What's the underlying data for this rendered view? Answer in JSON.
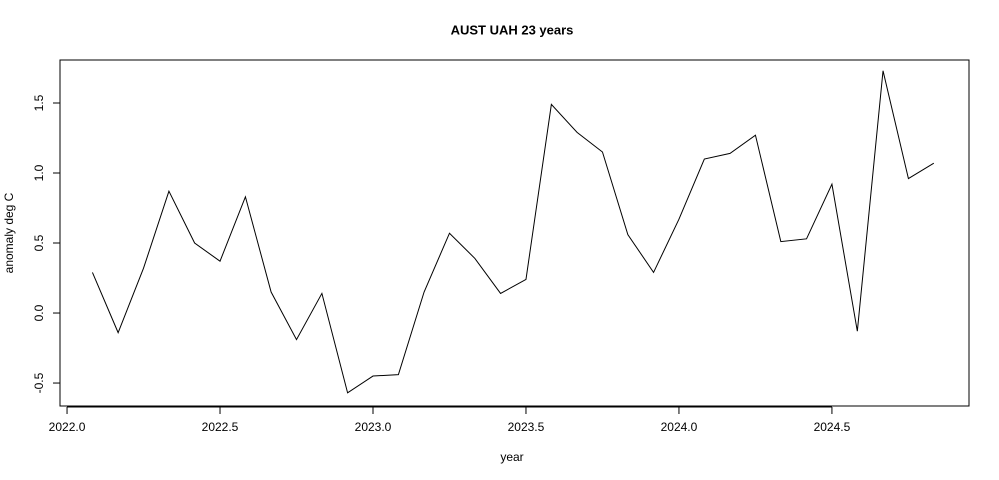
{
  "chart_data": {
    "type": "line",
    "title": "AUST UAH 23 years",
    "x_label": "year",
    "y_label": "anomaly deg C",
    "x": [
      2022.083,
      2022.167,
      2022.25,
      2022.333,
      2022.417,
      2022.5,
      2022.583,
      2022.667,
      2022.75,
      2022.833,
      2022.917,
      2023.0,
      2023.083,
      2023.167,
      2023.25,
      2023.333,
      2023.417,
      2023.5,
      2023.583,
      2023.667,
      2023.75,
      2023.833,
      2023.917,
      2024.0,
      2024.083,
      2024.167,
      2024.25,
      2024.333,
      2024.417,
      2024.5,
      2024.583,
      2024.667,
      2024.75,
      2024.833
    ],
    "values": [
      0.29,
      -0.14,
      0.32,
      0.87,
      0.5,
      0.37,
      0.83,
      0.15,
      -0.19,
      0.14,
      -0.57,
      -0.45,
      -0.44,
      0.15,
      0.57,
      0.39,
      0.14,
      0.24,
      1.49,
      1.29,
      1.15,
      0.56,
      0.29,
      0.67,
      1.1,
      1.14,
      1.27,
      0.51,
      0.53,
      0.92,
      -0.13,
      1.73,
      0.96,
      1.07
    ],
    "color": "#000000",
    "xlim": [
      2021.977,
      2024.948
    ],
    "ylim": [
      -0.664,
      1.807
    ],
    "xticks": [
      {
        "value": 2022,
        "label": "2022.0"
      },
      {
        "value": 2022.5,
        "label": "2022.5"
      },
      {
        "value": 2023,
        "label": "2023.0"
      },
      {
        "value": 2023.5,
        "label": "2023.5"
      },
      {
        "value": 2024,
        "label": "2024.0"
      },
      {
        "value": 2024.5,
        "label": "2024.5"
      }
    ],
    "yticks": [
      -0.5,
      {
        "value": 0,
        "label": "0.0"
      },
      0.5,
      {
        "value": 1,
        "label": "1.0"
      },
      1.5
    ]
  }
}
